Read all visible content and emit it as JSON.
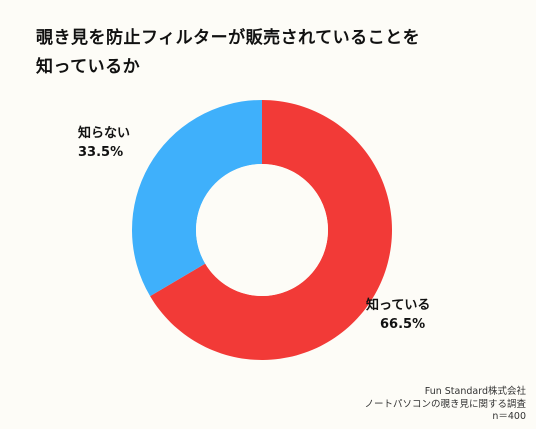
{
  "title": {
    "line1": "覗き見を防止フィルターが販売されていることを",
    "line2": "知っているか"
  },
  "chart_data": {
    "type": "pie",
    "variant": "donut",
    "title": "覗き見を防止フィルターが販売されていることを知っているか",
    "slices": [
      {
        "label": "知っている",
        "value": 66.5,
        "value_text": "66.5%",
        "color": "#f23a37"
      },
      {
        "label": "知らない",
        "value": 33.5,
        "value_text": "33.5%",
        "color": "#3fb0fb"
      }
    ],
    "start_angle": "12 o'clock",
    "direction": "clockwise",
    "legend": "none"
  },
  "source": {
    "line1": "Fun Standard株式会社",
    "line2": "ノートパソコンの覗き見に関する調査",
    "line3": "n＝400"
  }
}
